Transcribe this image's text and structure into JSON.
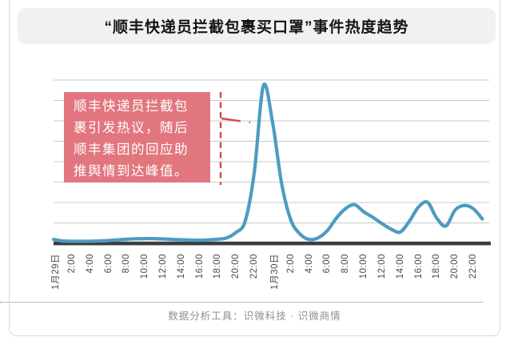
{
  "title": "“顺丰快递员拦截包裹买口罩”事件热度趋势",
  "annotation": {
    "lines": [
      "顺丰快递员拦截包",
      "裹引发热议，随后",
      "顺丰集团的回应助",
      "推舆情到达峰值。"
    ]
  },
  "footer": {
    "text": "数据分析工具：识微科技 · 识微商情"
  },
  "colors": {
    "line": "#4d9bc1",
    "grid": "#c9c9c9",
    "axis": "#3d3d3d",
    "dashed": "#d4494f",
    "annotation_bg": "#e1767e",
    "annotation_text": "#ffffff",
    "title_bg": "#f1f1f2",
    "title_text": "#151515",
    "tick_text": "#4c4c4c",
    "footer_text": "#8f8f8f"
  },
  "chart_data": {
    "type": "line",
    "title": "“顺丰快递员拦截包裹买口罩”事件热度趋势",
    "x_tick_labels": [
      "1月29日",
      "2:00",
      "4:00",
      "6:00",
      "8:00",
      "10:00",
      "12:00",
      "14:00",
      "16:00",
      "18:00",
      "20:00",
      "22:00",
      "1月30日",
      "2:00",
      "4:00",
      "6:00",
      "8:00",
      "10:00",
      "12:00",
      "14:00",
      "16:00",
      "18:00",
      "20:00",
      "22:00"
    ],
    "x_interval_hours": 1,
    "x_range": "1月29日 0:00 至 1月30日 23:00",
    "series": [
      {
        "name": "事件热度",
        "values": [
          2.5,
          1.5,
          1.3,
          1.3,
          1.3,
          1.5,
          1.8,
          2.2,
          2.6,
          2.9,
          3.0,
          3.0,
          2.8,
          2.5,
          2.3,
          2.1,
          2.0,
          2.2,
          2.6,
          3.5,
          7,
          14,
          45,
          100,
          77,
          38,
          15,
          6,
          2.5,
          3.5,
          8,
          16,
          22,
          24.5,
          20,
          16.5,
          12.5,
          9,
          7.2,
          14,
          23,
          26,
          16,
          11,
          21,
          24,
          22,
          15.5
        ]
      }
    ],
    "ylabel": "",
    "ylim": [
      0,
      104
    ],
    "grid": "horizontal",
    "gridline_count": 8,
    "legend": "none",
    "peak": {
      "x": "1月29日 23:00",
      "value": 100
    }
  }
}
